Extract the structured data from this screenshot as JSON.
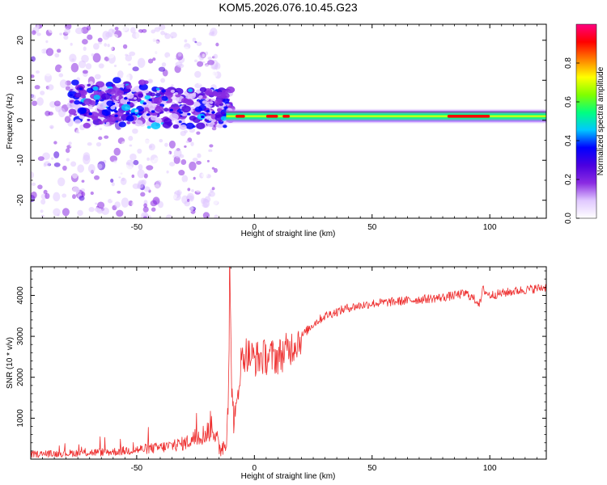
{
  "chart_data": [
    {
      "type": "heatmap",
      "title": "KOM5.2026.076.10.45.G23",
      "xlabel": "Height of straight line (km)",
      "ylabel": "Frequency (Hz)",
      "xlim": [
        -95,
        124
      ],
      "ylim": [
        -24.5,
        24
      ],
      "xticks": [
        -50,
        0,
        50,
        100
      ],
      "yticks": [
        -20,
        -10,
        0,
        10,
        20
      ],
      "colorbar": {
        "label": "Normalized spectral amplitude",
        "range": [
          0,
          1
        ],
        "ticks": [
          0.0,
          0.2,
          0.4,
          0.6,
          0.8
        ],
        "tick_labels": [
          "0.0",
          "0.2",
          "0.4",
          "0.6",
          "0.8"
        ],
        "colormap": [
          "#ffffff",
          "#e0c8ff",
          "#8a2be2",
          "#4b00e0",
          "#0000ff",
          "#00c8ff",
          "#00ff80",
          "#80ff00",
          "#ffff00",
          "#ff8000",
          "#ff0000",
          "#ff0080"
        ]
      },
      "features": {
        "noise_region_x": [
          -95,
          -15
        ],
        "noise_band_center_hz": 3,
        "noise_band_width_hz": 6,
        "signal_start_x": -12,
        "signal_center_hz": 1,
        "signal_halfwidth_hz": 1.2,
        "peak_amplitude": 0.95
      }
    },
    {
      "type": "line",
      "xlabel": "Height of straight line (km)",
      "ylabel": "SNR (10 * v/v)",
      "xlim": [
        -95,
        124
      ],
      "ylim": [
        0,
        4700
      ],
      "xticks": [
        -50,
        0,
        50,
        100
      ],
      "yticks": [
        1000,
        2000,
        3000,
        4000
      ],
      "series": [
        {
          "name": "SNR",
          "color": "#ee3030",
          "x": [
            -95,
            -80,
            -60,
            -40,
            -30,
            -20,
            -18,
            -15,
            -12,
            -11,
            -10.5,
            -10,
            -9,
            -8,
            -6,
            -4,
            0,
            5,
            10,
            15,
            20,
            25,
            30,
            40,
            50,
            60,
            70,
            80,
            90,
            96,
            97,
            100,
            110,
            124
          ],
          "y": [
            120,
            140,
            180,
            280,
            380,
            650,
            900,
            250,
            400,
            1800,
            4600,
            2600,
            1100,
            900,
            2300,
            2600,
            2450,
            2500,
            2500,
            2700,
            3000,
            3300,
            3500,
            3700,
            3800,
            3850,
            3900,
            3950,
            4050,
            3800,
            4150,
            4000,
            4100,
            4200
          ]
        }
      ]
    }
  ]
}
